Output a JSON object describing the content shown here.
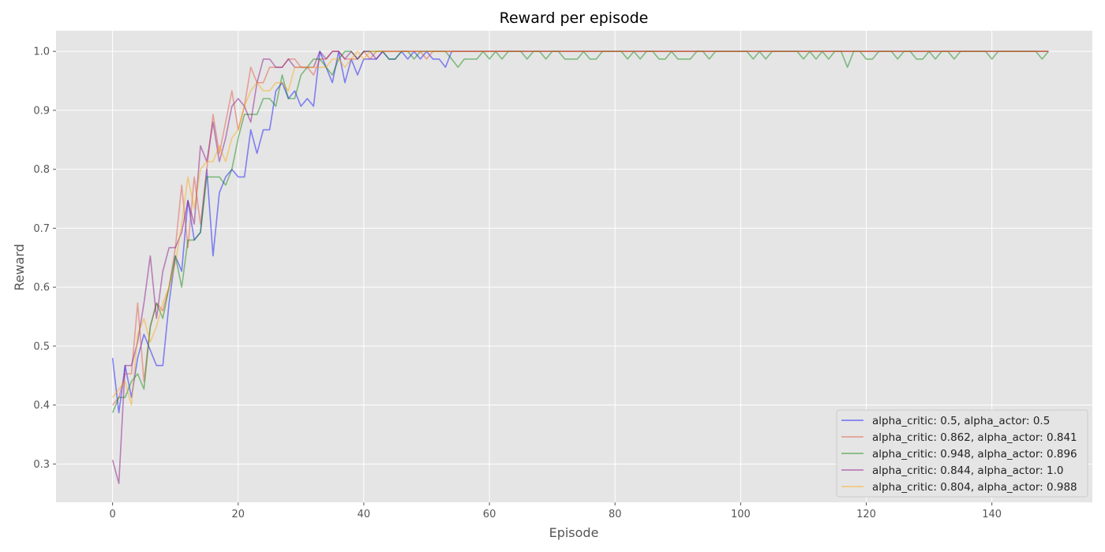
{
  "chart_data": {
    "type": "line",
    "title": "Reward per episode",
    "xlabel": "Episode",
    "ylabel": "Reward",
    "xlim": [
      -9,
      156
    ],
    "ylim": [
      0.235,
      1.035
    ],
    "xticks": [
      0,
      20,
      40,
      60,
      80,
      100,
      120,
      140
    ],
    "yticks": [
      0.3,
      0.4,
      0.5,
      0.6,
      0.7,
      0.8,
      0.9,
      1.0
    ],
    "ytick_labels": [
      "0.3",
      "0.4",
      "0.5",
      "0.6",
      "0.7",
      "0.8",
      "0.9",
      "1.0"
    ],
    "grid": true,
    "legend_position": "bottom-right",
    "series": [
      {
        "name": "alpha_critic: 0.5, alpha_actor: 0.5",
        "color": "#0000ff",
        "values": [
          0.48,
          0.387,
          0.467,
          0.413,
          0.48,
          0.52,
          0.493,
          0.467,
          0.467,
          0.573,
          0.653,
          0.627,
          0.747,
          0.68,
          0.693,
          0.8,
          0.653,
          0.76,
          0.787,
          0.8,
          0.787,
          0.787,
          0.867,
          0.827,
          0.867,
          0.867,
          0.933,
          0.947,
          0.92,
          0.933,
          0.907,
          0.92,
          0.907,
          1.0,
          0.973,
          0.947,
          1.0,
          0.947,
          0.987,
          0.96,
          0.987,
          0.987,
          0.987,
          1.0,
          0.987,
          0.987,
          1.0,
          0.987,
          1.0,
          0.987,
          1.0,
          0.987,
          0.987,
          0.973,
          1.0,
          1.0,
          1.0,
          1.0,
          1.0,
          1.0,
          1.0,
          1.0,
          1.0,
          1.0,
          1.0,
          1.0,
          1.0,
          1.0,
          1.0,
          1.0,
          1.0,
          1.0,
          1.0,
          1.0,
          1.0,
          1.0,
          1.0,
          1.0,
          1.0,
          1.0,
          1.0,
          1.0,
          1.0,
          1.0,
          1.0,
          1.0,
          1.0,
          1.0,
          1.0,
          1.0,
          1.0,
          1.0,
          1.0,
          1.0,
          1.0,
          1.0,
          1.0,
          1.0,
          1.0,
          1.0,
          1.0,
          1.0,
          1.0,
          1.0,
          1.0,
          1.0,
          1.0,
          1.0,
          1.0,
          1.0,
          1.0,
          1.0,
          1.0,
          1.0,
          1.0,
          1.0,
          1.0,
          1.0,
          1.0,
          1.0,
          1.0,
          1.0,
          1.0,
          1.0,
          1.0,
          1.0,
          1.0,
          1.0,
          1.0,
          1.0,
          1.0,
          1.0,
          1.0,
          1.0,
          1.0,
          1.0,
          1.0,
          1.0,
          1.0,
          1.0,
          1.0,
          1.0,
          1.0,
          1.0,
          1.0,
          1.0,
          1.0,
          1.0,
          1.0,
          1.0
        ]
      },
      {
        "name": "alpha_critic: 0.862, alpha_actor: 0.841",
        "color": "#e24a33",
        "values": [
          0.4,
          0.413,
          0.453,
          0.453,
          0.573,
          0.44,
          0.533,
          0.573,
          0.56,
          0.6,
          0.667,
          0.773,
          0.667,
          0.787,
          0.707,
          0.8,
          0.893,
          0.827,
          0.88,
          0.933,
          0.867,
          0.907,
          0.973,
          0.947,
          0.947,
          0.973,
          0.973,
          0.973,
          0.987,
          0.987,
          0.973,
          0.973,
          0.96,
          0.987,
          0.987,
          1.0,
          1.0,
          0.987,
          0.987,
          0.987,
          1.0,
          0.987,
          1.0,
          1.0,
          1.0,
          1.0,
          1.0,
          1.0,
          1.0,
          1.0,
          0.987,
          1.0,
          1.0,
          1.0,
          1.0,
          1.0,
          1.0,
          1.0,
          1.0,
          1.0,
          1.0,
          1.0,
          1.0,
          1.0,
          1.0,
          1.0,
          1.0,
          1.0,
          1.0,
          1.0,
          1.0,
          1.0,
          1.0,
          1.0,
          1.0,
          1.0,
          1.0,
          1.0,
          1.0,
          1.0,
          1.0,
          1.0,
          1.0,
          1.0,
          1.0,
          1.0,
          1.0,
          1.0,
          1.0,
          1.0,
          1.0,
          1.0,
          1.0,
          1.0,
          1.0,
          1.0,
          1.0,
          1.0,
          1.0,
          1.0,
          1.0,
          1.0,
          1.0,
          1.0,
          1.0,
          1.0,
          1.0,
          1.0,
          1.0,
          1.0,
          1.0,
          1.0,
          1.0,
          1.0,
          1.0,
          1.0,
          1.0,
          1.0,
          1.0,
          1.0,
          1.0,
          1.0,
          1.0,
          1.0,
          1.0,
          1.0,
          1.0,
          1.0,
          1.0,
          1.0,
          1.0,
          1.0,
          1.0,
          1.0,
          1.0,
          1.0,
          1.0,
          1.0,
          1.0,
          1.0,
          1.0,
          1.0,
          1.0,
          1.0,
          1.0,
          1.0,
          1.0,
          1.0,
          1.0,
          1.0
        ]
      },
      {
        "name": "alpha_critic: 0.948, alpha_actor: 0.896",
        "color": "#008000",
        "values": [
          0.387,
          0.413,
          0.413,
          0.44,
          0.453,
          0.427,
          0.533,
          0.573,
          0.547,
          0.6,
          0.653,
          0.6,
          0.68,
          0.68,
          0.693,
          0.787,
          0.787,
          0.787,
          0.773,
          0.8,
          0.853,
          0.893,
          0.893,
          0.893,
          0.92,
          0.92,
          0.907,
          0.96,
          0.92,
          0.92,
          0.96,
          0.973,
          0.987,
          0.987,
          0.973,
          0.96,
          0.987,
          1.0,
          1.0,
          0.987,
          1.0,
          1.0,
          1.0,
          1.0,
          0.987,
          0.987,
          1.0,
          1.0,
          0.987,
          1.0,
          1.0,
          1.0,
          1.0,
          1.0,
          0.987,
          0.973,
          0.987,
          0.987,
          0.987,
          1.0,
          0.987,
          1.0,
          0.987,
          1.0,
          1.0,
          1.0,
          0.987,
          1.0,
          1.0,
          0.987,
          1.0,
          1.0,
          0.987,
          0.987,
          0.987,
          1.0,
          0.987,
          0.987,
          1.0,
          1.0,
          1.0,
          1.0,
          0.987,
          1.0,
          0.987,
          1.0,
          1.0,
          0.987,
          0.987,
          1.0,
          0.987,
          0.987,
          0.987,
          1.0,
          1.0,
          0.987,
          1.0,
          1.0,
          1.0,
          1.0,
          1.0,
          1.0,
          0.987,
          1.0,
          0.987,
          1.0,
          1.0,
          1.0,
          1.0,
          1.0,
          0.987,
          1.0,
          0.987,
          1.0,
          0.987,
          1.0,
          1.0,
          0.973,
          1.0,
          1.0,
          0.987,
          0.987,
          1.0,
          1.0,
          1.0,
          0.987,
          1.0,
          1.0,
          0.987,
          0.987,
          1.0,
          0.987,
          1.0,
          1.0,
          0.987,
          1.0,
          1.0,
          1.0,
          1.0,
          1.0,
          0.987,
          1.0,
          1.0,
          1.0,
          1.0,
          1.0,
          1.0,
          1.0,
          0.987,
          1.0
        ]
      },
      {
        "name": "alpha_critic: 0.844, alpha_actor: 1.0",
        "color": "#800080",
        "values": [
          0.307,
          0.267,
          0.467,
          0.467,
          0.507,
          0.573,
          0.653,
          0.547,
          0.627,
          0.667,
          0.667,
          0.693,
          0.747,
          0.707,
          0.84,
          0.813,
          0.88,
          0.813,
          0.853,
          0.907,
          0.92,
          0.907,
          0.88,
          0.947,
          0.987,
          0.987,
          0.973,
          0.973,
          0.987,
          0.973,
          0.973,
          0.973,
          0.973,
          1.0,
          0.987,
          1.0,
          1.0,
          0.987,
          1.0,
          0.987,
          1.0,
          1.0,
          0.987,
          1.0,
          1.0,
          1.0,
          1.0,
          1.0,
          1.0,
          1.0,
          1.0,
          1.0,
          1.0,
          1.0,
          1.0,
          1.0,
          1.0,
          1.0,
          1.0,
          1.0,
          1.0,
          1.0,
          1.0,
          1.0,
          1.0,
          1.0,
          1.0,
          1.0,
          1.0,
          1.0,
          1.0,
          1.0,
          1.0,
          1.0,
          1.0,
          1.0,
          1.0,
          1.0,
          1.0,
          1.0,
          1.0,
          1.0,
          1.0,
          1.0,
          1.0,
          1.0,
          1.0,
          1.0,
          1.0,
          1.0,
          1.0,
          1.0,
          1.0,
          1.0,
          1.0,
          1.0,
          1.0,
          1.0,
          1.0,
          1.0,
          1.0,
          1.0,
          1.0,
          1.0,
          1.0,
          1.0,
          1.0,
          1.0,
          1.0,
          1.0,
          1.0,
          1.0,
          1.0,
          1.0,
          1.0,
          1.0,
          1.0,
          1.0,
          1.0,
          1.0,
          1.0,
          1.0,
          1.0,
          1.0,
          1.0,
          1.0,
          1.0,
          1.0,
          1.0,
          1.0,
          1.0,
          1.0,
          1.0,
          1.0,
          1.0,
          1.0,
          1.0,
          1.0,
          1.0,
          1.0,
          1.0,
          1.0,
          1.0,
          1.0,
          1.0,
          1.0,
          1.0,
          1.0,
          1.0,
          1.0
        ]
      },
      {
        "name": "alpha_critic: 0.804, alpha_actor: 0.988",
        "color": "#ffa500",
        "values": [
          0.413,
          0.427,
          0.44,
          0.4,
          0.52,
          0.547,
          0.507,
          0.533,
          0.573,
          0.6,
          0.64,
          0.707,
          0.787,
          0.733,
          0.8,
          0.813,
          0.813,
          0.84,
          0.813,
          0.853,
          0.867,
          0.907,
          0.933,
          0.947,
          0.933,
          0.933,
          0.947,
          0.947,
          0.933,
          0.973,
          0.973,
          0.973,
          0.973,
          0.973,
          0.973,
          0.987,
          0.987,
          0.973,
          0.987,
          1.0,
          0.987,
          1.0,
          1.0,
          1.0,
          1.0,
          1.0,
          1.0,
          1.0,
          1.0,
          1.0,
          1.0,
          1.0,
          1.0,
          1.0,
          1.0,
          1.0,
          1.0,
          1.0,
          1.0,
          1.0,
          1.0,
          1.0,
          1.0,
          1.0,
          1.0,
          1.0,
          1.0,
          1.0,
          1.0,
          1.0,
          1.0,
          1.0,
          1.0,
          1.0,
          1.0,
          1.0,
          1.0,
          1.0,
          1.0,
          1.0,
          1.0,
          1.0,
          1.0,
          1.0,
          1.0,
          1.0,
          1.0,
          1.0,
          1.0,
          1.0,
          1.0,
          1.0,
          1.0,
          1.0,
          1.0,
          1.0,
          1.0,
          1.0,
          1.0,
          1.0,
          1.0,
          1.0,
          1.0,
          1.0,
          1.0,
          1.0,
          1.0,
          1.0,
          1.0,
          1.0,
          1.0,
          1.0,
          1.0,
          1.0,
          1.0,
          1.0,
          1.0,
          1.0,
          1.0,
          1.0,
          1.0,
          1.0,
          1.0,
          1.0,
          1.0,
          1.0,
          1.0,
          1.0,
          1.0,
          1.0,
          1.0,
          1.0,
          1.0,
          1.0,
          1.0,
          1.0,
          1.0,
          1.0,
          1.0,
          1.0,
          1.0,
          1.0,
          1.0,
          1.0,
          1.0,
          1.0,
          1.0,
          1.0,
          1.0,
          1.0
        ]
      }
    ]
  }
}
